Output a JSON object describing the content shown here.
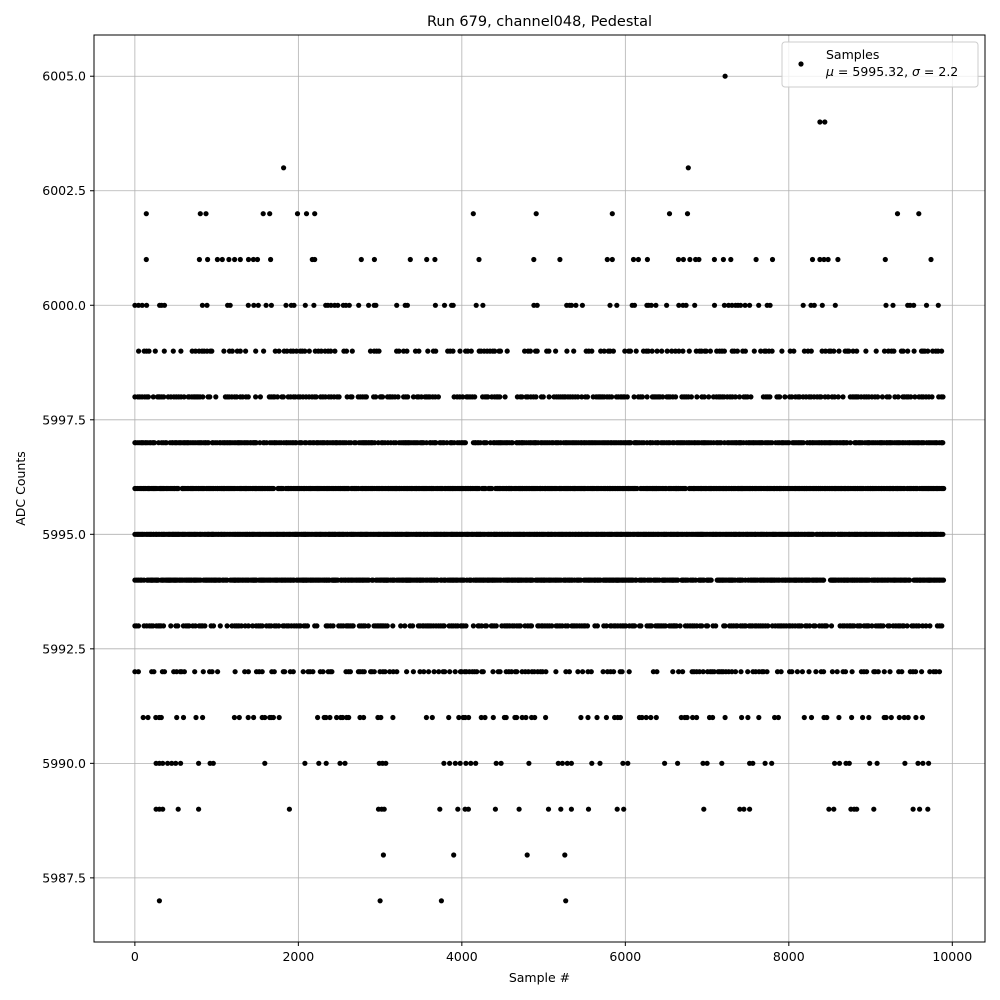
{
  "chart_data": {
    "type": "scatter",
    "title": "Run 679, channel048, Pedestal",
    "xlabel": "Sample #",
    "ylabel": "ADC Counts",
    "xlim": [
      -500,
      10400
    ],
    "ylim": [
      5986.1,
      6005.9
    ],
    "x_ticks": [
      0,
      2000,
      4000,
      6000,
      8000,
      10000
    ],
    "x_tick_labels": [
      "0",
      "2000",
      "4000",
      "6000",
      "8000",
      "10000"
    ],
    "y_ticks": [
      5987.5,
      5990.0,
      5992.5,
      5995.0,
      5997.5,
      6000.0,
      6002.5,
      6005.0
    ],
    "y_tick_labels": [
      "5987.5",
      "5990.0",
      "5992.5",
      "5995.0",
      "5997.5",
      "6000.0",
      "6002.5",
      "6005.0"
    ],
    "grid": true,
    "legend": {
      "position": "top-right",
      "label": "Samples",
      "stats_mu_symbol": "μ",
      "stats_mu_value": " = 5995.32, ",
      "stats_sigma_symbol": "σ",
      "stats_sigma_value": " = 2.2"
    },
    "marker_color": "#000000",
    "n_samples": 10000,
    "mean": 5995.32,
    "sigma": 2.2,
    "series": [
      {
        "name": "Samples",
        "x_range": [
          0,
          9900
        ],
        "levels": [
          5987,
          5988,
          5989,
          5990,
          5991,
          5992,
          5993,
          5994,
          5995,
          5996,
          5997,
          5998,
          5999,
          6000,
          6001,
          6002,
          6003,
          6004,
          6005
        ],
        "dense_levels": [
          5991,
          5992,
          5993,
          5994,
          5995,
          5996,
          5997,
          5998,
          5999,
          6000
        ],
        "sparse_points": [
          [
            300,
            5987
          ],
          [
            3000,
            5987
          ],
          [
            3750,
            5987
          ],
          [
            5270,
            5987
          ],
          [
            3040,
            5988
          ],
          [
            3900,
            5988
          ],
          [
            4800,
            5988
          ],
          [
            5260,
            5988
          ],
          [
            260,
            5989
          ],
          [
            300,
            5989
          ],
          [
            340,
            5989
          ],
          [
            530,
            5989
          ],
          [
            780,
            5989
          ],
          [
            1890,
            5989
          ],
          [
            2980,
            5989
          ],
          [
            3020,
            5989
          ],
          [
            3050,
            5989
          ],
          [
            3730,
            5989
          ],
          [
            3950,
            5989
          ],
          [
            4040,
            5989
          ],
          [
            4080,
            5989
          ],
          [
            4410,
            5989
          ],
          [
            4700,
            5989
          ],
          [
            5060,
            5989
          ],
          [
            5210,
            5989
          ],
          [
            5340,
            5989
          ],
          [
            5550,
            5989
          ],
          [
            5900,
            5989
          ],
          [
            5980,
            5989
          ],
          [
            6960,
            5989
          ],
          [
            7400,
            5989
          ],
          [
            7450,
            5989
          ],
          [
            7520,
            5989
          ],
          [
            8490,
            5989
          ],
          [
            8550,
            5989
          ],
          [
            8760,
            5989
          ],
          [
            8800,
            5989
          ],
          [
            8830,
            5989
          ],
          [
            9040,
            5989
          ],
          [
            9520,
            5989
          ],
          [
            9600,
            5989
          ],
          [
            9700,
            5989
          ],
          [
            260,
            5990
          ],
          [
            300,
            5990
          ],
          [
            340,
            5990
          ],
          [
            400,
            5990
          ],
          [
            450,
            5990
          ],
          [
            500,
            5990
          ],
          [
            560,
            5990
          ],
          [
            780,
            5990
          ],
          [
            920,
            5990
          ],
          [
            960,
            5990
          ],
          [
            1590,
            5990
          ],
          [
            2080,
            5990
          ],
          [
            2250,
            5990
          ],
          [
            2340,
            5990
          ],
          [
            2510,
            5990
          ],
          [
            2570,
            5990
          ],
          [
            2990,
            5990
          ],
          [
            3030,
            5990
          ],
          [
            3070,
            5990
          ],
          [
            3780,
            5990
          ],
          [
            3850,
            5990
          ],
          [
            3920,
            5990
          ],
          [
            3980,
            5990
          ],
          [
            4050,
            5990
          ],
          [
            4110,
            5990
          ],
          [
            4170,
            5990
          ],
          [
            4420,
            5990
          ],
          [
            4480,
            5990
          ],
          [
            4820,
            5990
          ],
          [
            5180,
            5990
          ],
          [
            5230,
            5990
          ],
          [
            5290,
            5990
          ],
          [
            5340,
            5990
          ],
          [
            5590,
            5990
          ],
          [
            5690,
            5990
          ],
          [
            5970,
            5990
          ],
          [
            6030,
            5990
          ],
          [
            6480,
            5990
          ],
          [
            6640,
            5990
          ],
          [
            6950,
            5990
          ],
          [
            7000,
            5990
          ],
          [
            7180,
            5990
          ],
          [
            7520,
            5990
          ],
          [
            7560,
            5990
          ],
          [
            7710,
            5990
          ],
          [
            7790,
            5990
          ],
          [
            8560,
            5990
          ],
          [
            8620,
            5990
          ],
          [
            8700,
            5990
          ],
          [
            8740,
            5990
          ],
          [
            8990,
            5990
          ],
          [
            9080,
            5990
          ],
          [
            9420,
            5990
          ],
          [
            9580,
            5990
          ],
          [
            9640,
            5990
          ],
          [
            9710,
            5990
          ],
          [
            140,
            6001
          ],
          [
            790,
            6001
          ],
          [
            890,
            6001
          ],
          [
            1010,
            6001
          ],
          [
            1070,
            6001
          ],
          [
            1150,
            6001
          ],
          [
            1220,
            6001
          ],
          [
            1290,
            6001
          ],
          [
            1390,
            6001
          ],
          [
            1450,
            6001
          ],
          [
            1500,
            6001
          ],
          [
            1660,
            6001
          ],
          [
            2170,
            6001
          ],
          [
            2200,
            6001
          ],
          [
            2770,
            6001
          ],
          [
            2930,
            6001
          ],
          [
            3370,
            6001
          ],
          [
            3570,
            6001
          ],
          [
            3670,
            6001
          ],
          [
            4210,
            6001
          ],
          [
            4880,
            6001
          ],
          [
            5200,
            6001
          ],
          [
            5780,
            6001
          ],
          [
            5840,
            6001
          ],
          [
            6100,
            6001
          ],
          [
            6160,
            6001
          ],
          [
            6270,
            6001
          ],
          [
            6650,
            6001
          ],
          [
            6710,
            6001
          ],
          [
            6790,
            6001
          ],
          [
            6860,
            6001
          ],
          [
            6900,
            6001
          ],
          [
            7090,
            6001
          ],
          [
            7200,
            6001
          ],
          [
            7290,
            6001
          ],
          [
            7600,
            6001
          ],
          [
            7800,
            6001
          ],
          [
            8290,
            6001
          ],
          [
            8380,
            6001
          ],
          [
            8430,
            6001
          ],
          [
            8480,
            6001
          ],
          [
            8600,
            6001
          ],
          [
            9180,
            6001
          ],
          [
            9740,
            6001
          ],
          [
            140,
            6002
          ],
          [
            800,
            6002
          ],
          [
            870,
            6002
          ],
          [
            1570,
            6002
          ],
          [
            1650,
            6002
          ],
          [
            1990,
            6002
          ],
          [
            2100,
            6002
          ],
          [
            2200,
            6002
          ],
          [
            4140,
            6002
          ],
          [
            4910,
            6002
          ],
          [
            5840,
            6002
          ],
          [
            6540,
            6002
          ],
          [
            6760,
            6002
          ],
          [
            9330,
            6002
          ],
          [
            9590,
            6002
          ],
          [
            1820,
            6003
          ],
          [
            6770,
            6003
          ],
          [
            8380,
            6004
          ],
          [
            8440,
            6004
          ],
          [
            7220,
            6005
          ]
        ],
        "gap_samples": [
          [
            5991,
            1050,
            1150
          ],
          [
            5991,
            1290,
            1370
          ],
          [
            5991,
            1800,
            1990
          ],
          [
            5991,
            6400,
            6580
          ],
          [
            5991,
            6920,
            7010
          ],
          [
            5991,
            7700,
            7800
          ],
          [
            5991,
            9680,
            9900
          ],
          [
            5992,
            610,
            730
          ],
          [
            5992,
            1080,
            1180
          ],
          [
            5992,
            1750,
            1800
          ],
          [
            5992,
            2450,
            2500
          ],
          [
            5992,
            3350,
            3400
          ],
          [
            5992,
            6080,
            6300
          ],
          [
            5992,
            6420,
            6520
          ],
          [
            6000,
            600,
            760
          ],
          [
            6000,
            2950,
            3170
          ],
          [
            6000,
            3500,
            3620
          ],
          [
            6000,
            3950,
            4120
          ],
          [
            6000,
            4280,
            4480
          ],
          [
            6000,
            4650,
            4830
          ],
          [
            6000,
            5000,
            5120
          ],
          [
            6000,
            5550,
            5700
          ],
          [
            6000,
            6900,
            7000
          ],
          [
            6000,
            7800,
            8100
          ],
          [
            6000,
            8600,
            9100
          ],
          [
            5999,
            260,
            350
          ],
          [
            5999,
            1600,
            1700
          ],
          [
            5999,
            3070,
            3200
          ]
        ]
      }
    ]
  }
}
